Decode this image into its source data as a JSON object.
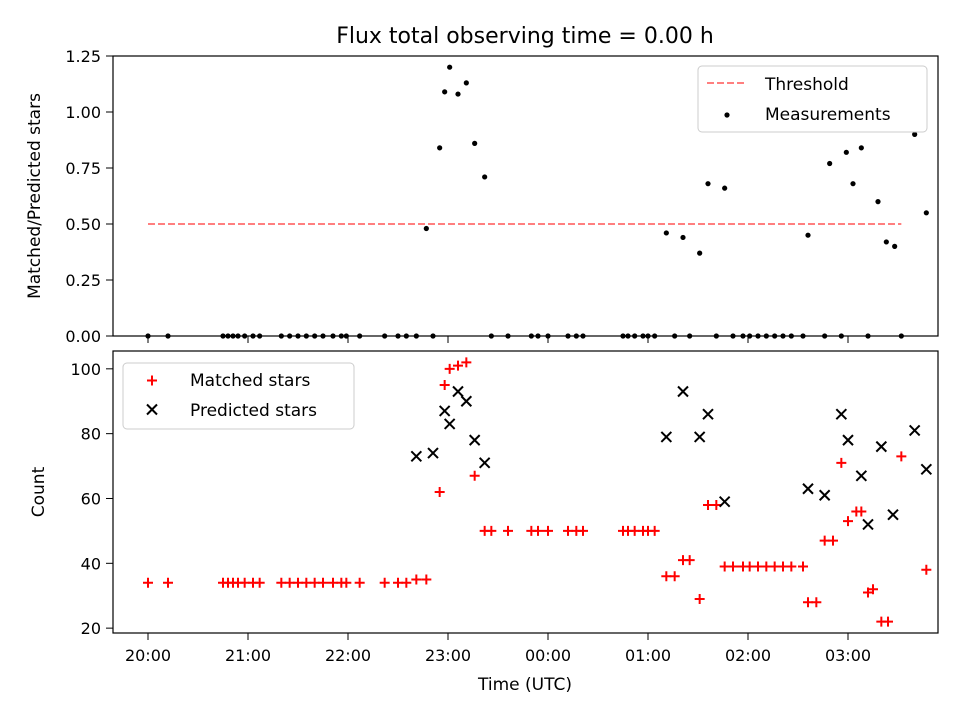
{
  "chart_data": {
    "title": "Flux total observing time = 0.00 h",
    "type": "scatter",
    "xlabel": "Time (UTC)",
    "x_tick_labels": [
      "20:00",
      "21:00",
      "22:00",
      "23:00",
      "00:00",
      "01:00",
      "02:00",
      "03:00"
    ],
    "panels": [
      {
        "ylabel": "Matched/Predicted stars",
        "ylim": [
          0,
          1.25
        ],
        "y_ticks": [
          "0.00",
          "0.25",
          "0.50",
          "0.75",
          "1.00",
          "1.25"
        ],
        "legend_position": "upper right",
        "series": [
          {
            "name": "Threshold",
            "kind": "dashed-line",
            "color": "#ff7f7f",
            "points": [
              [
                "20:00",
                0.5
              ],
              [
                "03:32",
                0.5
              ]
            ]
          },
          {
            "name": "Measurements",
            "kind": "dot",
            "color": "#000000",
            "points": [
              [
                "20:00",
                0
              ],
              [
                "20:12",
                0
              ],
              [
                "20:45",
                0
              ],
              [
                "20:48",
                0
              ],
              [
                "20:51",
                0
              ],
              [
                "20:54",
                0
              ],
              [
                "20:58",
                0
              ],
              [
                "21:03",
                0
              ],
              [
                "21:07",
                0
              ],
              [
                "21:20",
                0
              ],
              [
                "21:25",
                0
              ],
              [
                "21:30",
                0
              ],
              [
                "21:35",
                0
              ],
              [
                "21:40",
                0
              ],
              [
                "21:45",
                0
              ],
              [
                "21:51",
                0
              ],
              [
                "21:56",
                0
              ],
              [
                "21:59",
                0
              ],
              [
                "22:07",
                0
              ],
              [
                "22:22",
                0
              ],
              [
                "22:30",
                0
              ],
              [
                "22:35",
                0
              ],
              [
                "22:41",
                0
              ],
              [
                "22:47",
                0.48
              ],
              [
                "22:51",
                0
              ],
              [
                "22:55",
                0.84
              ],
              [
                "22:58",
                1.09
              ],
              [
                "23:01",
                1.2
              ],
              [
                "23:06",
                1.08
              ],
              [
                "23:11",
                1.13
              ],
              [
                "23:16",
                0.86
              ],
              [
                "23:22",
                0.71
              ],
              [
                "23:26",
                0
              ],
              [
                "23:36",
                0
              ],
              [
                "23:50",
                0
              ],
              [
                "23:54",
                0
              ],
              [
                "00:00",
                0
              ],
              [
                "00:12",
                0
              ],
              [
                "00:17",
                0
              ],
              [
                "00:21",
                0
              ],
              [
                "00:45",
                0
              ],
              [
                "00:48",
                0
              ],
              [
                "00:52",
                0
              ],
              [
                "00:57",
                0
              ],
              [
                "01:00",
                0
              ],
              [
                "01:04",
                0
              ],
              [
                "01:11",
                0.46
              ],
              [
                "01:16",
                0
              ],
              [
                "01:21",
                0.44
              ],
              [
                "01:25",
                0
              ],
              [
                "01:31",
                0.37
              ],
              [
                "01:36",
                0.68
              ],
              [
                "01:41",
                0
              ],
              [
                "01:46",
                0.66
              ],
              [
                "01:51",
                0
              ],
              [
                "01:57",
                0
              ],
              [
                "02:01",
                0
              ],
              [
                "02:06",
                0
              ],
              [
                "02:11",
                0
              ],
              [
                "02:16",
                0
              ],
              [
                "02:21",
                0
              ],
              [
                "02:26",
                0
              ],
              [
                "02:33",
                0
              ],
              [
                "02:36",
                0.45
              ],
              [
                "02:46",
                0
              ],
              [
                "02:49",
                0.77
              ],
              [
                "02:56",
                0
              ],
              [
                "02:59",
                0.82
              ],
              [
                "03:03",
                0.68
              ],
              [
                "03:08",
                0.84
              ],
              [
                "03:12",
                0
              ],
              [
                "03:18",
                0.6
              ],
              [
                "03:23",
                0.42
              ],
              [
                "03:28",
                0.4
              ],
              [
                "03:32",
                0
              ],
              [
                "03:40",
                0.9
              ],
              [
                "03:47",
                0.55
              ]
            ]
          }
        ]
      },
      {
        "ylabel": "Count",
        "ylim": [
          18.5,
          105.5
        ],
        "y_ticks": [
          "20",
          "40",
          "60",
          "80",
          "100"
        ],
        "legend_position": "upper left",
        "series": [
          {
            "name": "Matched stars",
            "kind": "plus",
            "color": "#ff0000",
            "points": [
              [
                "20:00",
                34
              ],
              [
                "20:12",
                34
              ],
              [
                "20:45",
                34
              ],
              [
                "20:48",
                34
              ],
              [
                "20:51",
                34
              ],
              [
                "20:54",
                34
              ],
              [
                "20:58",
                34
              ],
              [
                "21:03",
                34
              ],
              [
                "21:07",
                34
              ],
              [
                "21:20",
                34
              ],
              [
                "21:25",
                34
              ],
              [
                "21:30",
                34
              ],
              [
                "21:35",
                34
              ],
              [
                "21:40",
                34
              ],
              [
                "21:45",
                34
              ],
              [
                "21:51",
                34
              ],
              [
                "21:56",
                34
              ],
              [
                "21:59",
                34
              ],
              [
                "22:07",
                34
              ],
              [
                "22:22",
                34
              ],
              [
                "22:30",
                34
              ],
              [
                "22:35",
                34
              ],
              [
                "22:41",
                35
              ],
              [
                "22:47",
                35
              ],
              [
                "22:55",
                62
              ],
              [
                "22:58",
                95
              ],
              [
                "23:01",
                100
              ],
              [
                "23:06",
                101
              ],
              [
                "23:11",
                102
              ],
              [
                "23:16",
                67
              ],
              [
                "23:22",
                50
              ],
              [
                "23:26",
                50
              ],
              [
                "23:36",
                50
              ],
              [
                "23:50",
                50
              ],
              [
                "23:54",
                50
              ],
              [
                "00:00",
                50
              ],
              [
                "00:12",
                50
              ],
              [
                "00:17",
                50
              ],
              [
                "00:21",
                50
              ],
              [
                "00:45",
                50
              ],
              [
                "00:48",
                50
              ],
              [
                "00:52",
                50
              ],
              [
                "00:57",
                50
              ],
              [
                "01:00",
                50
              ],
              [
                "01:04",
                50
              ],
              [
                "01:11",
                36
              ],
              [
                "01:16",
                36
              ],
              [
                "01:21",
                41
              ],
              [
                "01:25",
                41
              ],
              [
                "01:31",
                29
              ],
              [
                "01:36",
                58
              ],
              [
                "01:41",
                58
              ],
              [
                "01:46",
                39
              ],
              [
                "01:51",
                39
              ],
              [
                "01:57",
                39
              ],
              [
                "02:01",
                39
              ],
              [
                "02:06",
                39
              ],
              [
                "02:11",
                39
              ],
              [
                "02:16",
                39
              ],
              [
                "02:21",
                39
              ],
              [
                "02:26",
                39
              ],
              [
                "02:33",
                39
              ],
              [
                "02:36",
                28
              ],
              [
                "02:41",
                28
              ],
              [
                "02:46",
                47
              ],
              [
                "02:51",
                47
              ],
              [
                "02:56",
                71
              ],
              [
                "03:00",
                53
              ],
              [
                "03:05",
                56
              ],
              [
                "03:08",
                56
              ],
              [
                "03:12",
                31
              ],
              [
                "03:15",
                32
              ],
              [
                "03:20",
                22
              ],
              [
                "03:24",
                22
              ],
              [
                "03:32",
                73
              ],
              [
                "03:47",
                38
              ]
            ]
          },
          {
            "name": "Predicted stars",
            "kind": "x",
            "color": "#000000",
            "points": [
              [
                "22:41",
                73
              ],
              [
                "22:51",
                74
              ],
              [
                "22:58",
                87
              ],
              [
                "23:01",
                83
              ],
              [
                "23:06",
                93
              ],
              [
                "23:11",
                90
              ],
              [
                "23:16",
                78
              ],
              [
                "23:22",
                71
              ],
              [
                "01:11",
                79
              ],
              [
                "01:21",
                93
              ],
              [
                "01:31",
                79
              ],
              [
                "01:36",
                86
              ],
              [
                "01:46",
                59
              ],
              [
                "02:36",
                63
              ],
              [
                "02:46",
                61
              ],
              [
                "02:56",
                86
              ],
              [
                "03:00",
                78
              ],
              [
                "03:08",
                67
              ],
              [
                "03:12",
                52
              ],
              [
                "03:20",
                76
              ],
              [
                "03:27",
                55
              ],
              [
                "03:40",
                81
              ],
              [
                "03:47",
                69
              ]
            ]
          }
        ]
      }
    ]
  }
}
